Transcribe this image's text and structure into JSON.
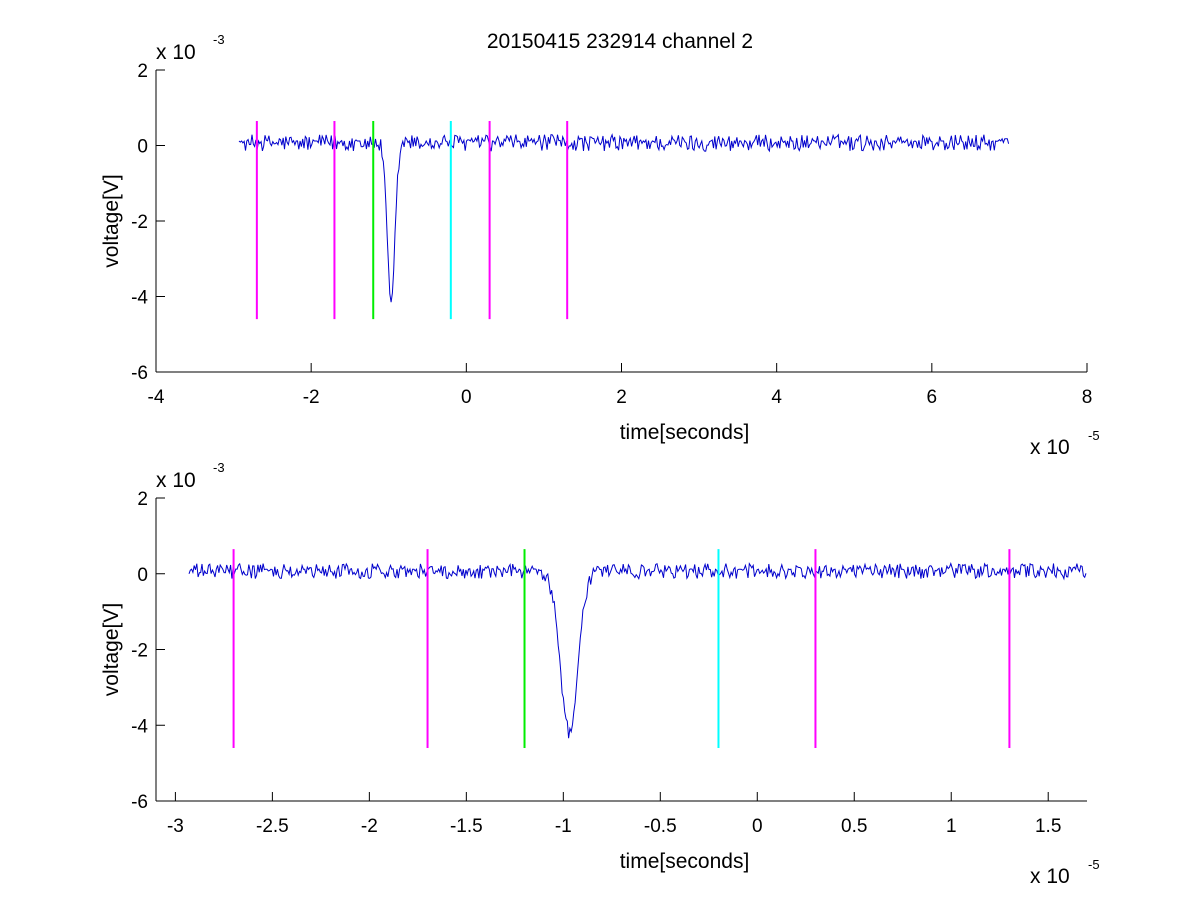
{
  "figure": {
    "title": "20150415 232914 channel 2"
  },
  "chart_data": [
    {
      "type": "line",
      "name": "full-view",
      "title": "20150415 232914 channel 2",
      "xlabel": "time[seconds]",
      "ylabel": "voltage[V]",
      "x_multiplier": {
        "base": "x 10",
        "exp": "-5"
      },
      "y_multiplier": {
        "base": "x 10",
        "exp": "-3"
      },
      "xlim": [
        -4,
        8
      ],
      "ylim": [
        -6,
        2
      ],
      "xticks": [
        -4,
        -2,
        0,
        2,
        4,
        6,
        8
      ],
      "xtick_labels": [
        "-4",
        "-2",
        "0",
        "2",
        "4",
        "6",
        "8"
      ],
      "yticks": [
        -6,
        -4,
        -2,
        0,
        2
      ],
      "ytick_labels": [
        "-6",
        "-4",
        "-2",
        "0",
        "2"
      ],
      "grid": false,
      "signal": {
        "color": "#0000cc",
        "x_range": [
          -2.93,
          7.0
        ],
        "baseline": 0.07,
        "noise_amplitude": 0.22,
        "dip": {
          "x_center": -0.97,
          "min": -4.2,
          "width": 0.05
        }
      },
      "markers": [
        {
          "x": -2.7,
          "color": "#ff00ff",
          "y_top": 0.65,
          "y_bottom": -4.6
        },
        {
          "x": -1.7,
          "color": "#ff00ff",
          "y_top": 0.65,
          "y_bottom": -4.6
        },
        {
          "x": -1.2,
          "color": "#00ee00",
          "y_top": 0.65,
          "y_bottom": -4.6
        },
        {
          "x": -0.2,
          "color": "#00ffff",
          "y_top": 0.65,
          "y_bottom": -4.6
        },
        {
          "x": 0.3,
          "color": "#ff00ff",
          "y_top": 0.65,
          "y_bottom": -4.6
        },
        {
          "x": 1.3,
          "color": "#ff00ff",
          "y_top": 0.65,
          "y_bottom": -4.6
        }
      ]
    },
    {
      "type": "line",
      "name": "zoom-view",
      "title": "",
      "xlabel": "time[seconds]",
      "ylabel": "voltage[V]",
      "x_multiplier": {
        "base": "x 10",
        "exp": "-5"
      },
      "y_multiplier": {
        "base": "x 10",
        "exp": "-3"
      },
      "xlim": [
        -3.1,
        1.7
      ],
      "ylim": [
        -6,
        2
      ],
      "xticks": [
        -3,
        -2.5,
        -2,
        -1.5,
        -1,
        -0.5,
        0,
        0.5,
        1,
        1.5
      ],
      "xtick_labels": [
        "-3",
        "-2.5",
        "-2",
        "-1.5",
        "-1",
        "-0.5",
        "0",
        "0.5",
        "1",
        "1.5"
      ],
      "yticks": [
        -6,
        -4,
        -2,
        0,
        2
      ],
      "ytick_labels": [
        "-6",
        "-4",
        "-2",
        "0",
        "2"
      ],
      "grid": false,
      "signal": {
        "color": "#0000cc",
        "x_range": [
          -2.93,
          1.7
        ],
        "baseline": 0.07,
        "noise_amplitude": 0.2,
        "dip": {
          "x_center": -0.97,
          "min": -4.15,
          "width": 0.045
        }
      },
      "markers": [
        {
          "x": -2.7,
          "color": "#ff00ff",
          "y_top": 0.65,
          "y_bottom": -4.6
        },
        {
          "x": -1.7,
          "color": "#ff00ff",
          "y_top": 0.65,
          "y_bottom": -4.6
        },
        {
          "x": -1.2,
          "color": "#00ee00",
          "y_top": 0.65,
          "y_bottom": -4.6
        },
        {
          "x": -0.2,
          "color": "#00ffff",
          "y_top": 0.65,
          "y_bottom": -4.6
        },
        {
          "x": 0.3,
          "color": "#ff00ff",
          "y_top": 0.65,
          "y_bottom": -4.6
        },
        {
          "x": 1.3,
          "color": "#ff00ff",
          "y_top": 0.65,
          "y_bottom": -4.6
        }
      ]
    }
  ]
}
